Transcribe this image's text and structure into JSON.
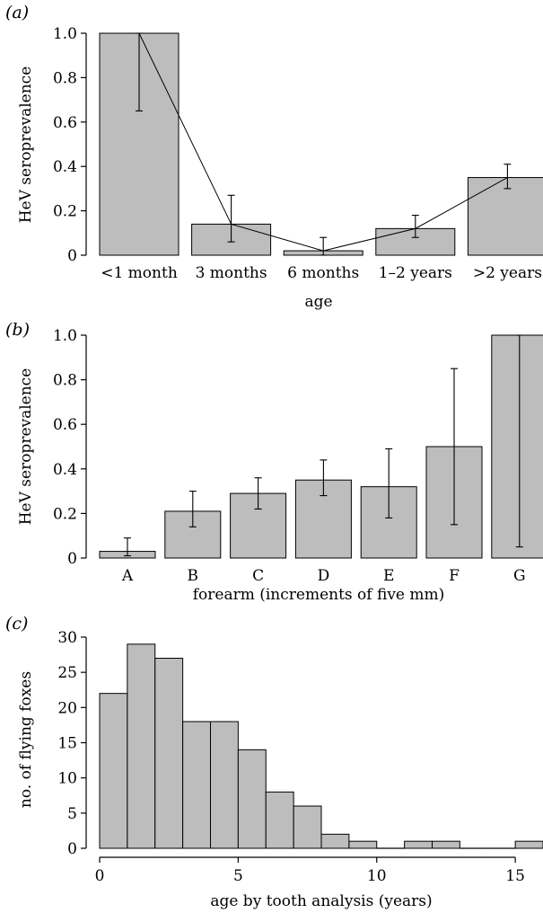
{
  "chart_data": [
    {
      "type": "bar",
      "panel_label": "(a)",
      "categories": [
        "<1 month",
        "3 months",
        "6 months",
        "1–2 years",
        ">2 years"
      ],
      "values": [
        1.0,
        0.14,
        0.02,
        0.12,
        0.35
      ],
      "error_low": [
        0.65,
        0.06,
        0.0,
        0.08,
        0.3
      ],
      "error_high": [
        1.0,
        0.27,
        0.08,
        0.18,
        0.41
      ],
      "connecting_line": true,
      "title": "",
      "xlabel": "age",
      "ylabel": "HeV seroprevalence",
      "ylim": [
        0,
        1.0
      ],
      "yticks": [
        "0",
        "0.2",
        "0.4",
        "0.6",
        "0.8",
        "1.0"
      ],
      "bar_color": "#bdbdbd",
      "grid": false
    },
    {
      "type": "bar",
      "panel_label": "(b)",
      "categories": [
        "A",
        "B",
        "C",
        "D",
        "E",
        "F",
        "G"
      ],
      "values": [
        0.03,
        0.21,
        0.29,
        0.35,
        0.32,
        0.5,
        1.0
      ],
      "error_low": [
        0.01,
        0.14,
        0.22,
        0.28,
        0.18,
        0.15,
        0.05
      ],
      "error_high": [
        0.09,
        0.3,
        0.36,
        0.44,
        0.49,
        0.85,
        1.0
      ],
      "title": "",
      "xlabel": "forearm (increments of five mm)",
      "ylabel": "HeV seroprevalence",
      "ylim": [
        0,
        1.0
      ],
      "yticks": [
        "0",
        "0.2",
        "0.4",
        "0.6",
        "0.8",
        "1.0"
      ],
      "bar_color": "#bdbdbd",
      "grid": false
    },
    {
      "type": "histogram",
      "panel_label": "(c)",
      "bin_edges": [
        0,
        1,
        2,
        3,
        4,
        5,
        6,
        7,
        8,
        9,
        10,
        11,
        12,
        13,
        14,
        15,
        16
      ],
      "counts": [
        22,
        29,
        27,
        18,
        18,
        14,
        8,
        6,
        2,
        1,
        0,
        1,
        1,
        0,
        0,
        1
      ],
      "title": "",
      "xlabel": "age by tooth analysis (years)",
      "ylabel": "no. of flying foxes",
      "xlim": [
        0,
        16
      ],
      "ylim": [
        0,
        30
      ],
      "xticks": [
        "0",
        "5",
        "10",
        "15"
      ],
      "yticks": [
        "0",
        "5",
        "10",
        "15",
        "20",
        "25",
        "30"
      ],
      "bar_color": "#bdbdbd",
      "grid": false
    }
  ]
}
